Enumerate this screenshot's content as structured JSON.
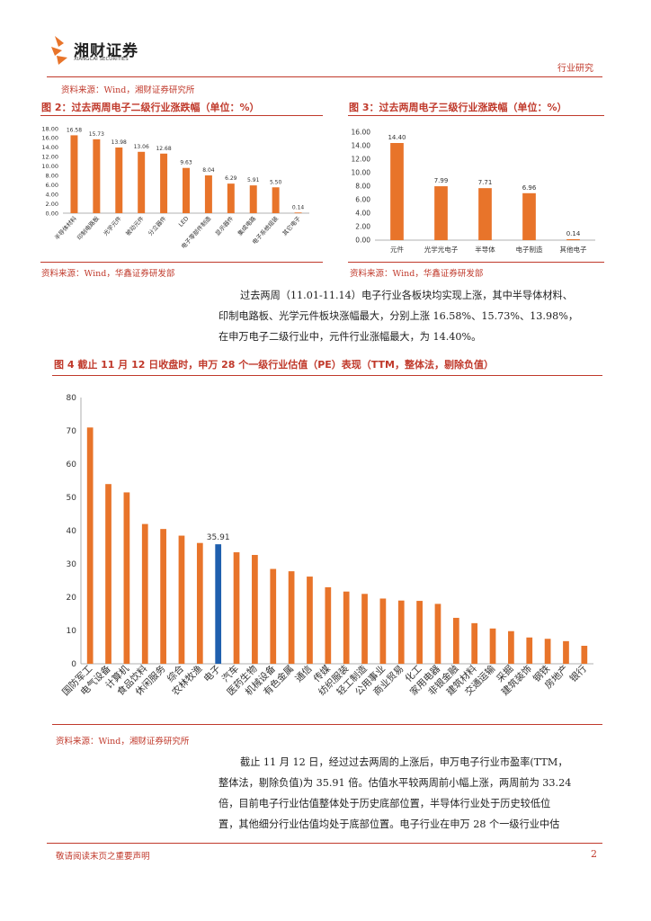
{
  "header": {
    "logo_cn": "湘财证券",
    "logo_en": "XIANGCAI SECURITIES",
    "section": "行业研究"
  },
  "source_top": "资料来源：Wind，湘财证券研究所",
  "fig2": {
    "title": "图 2：过去两周电子二级行业涨跌幅（单位：%）",
    "source": "资料来源：Wind，华鑫证券研发部"
  },
  "fig3": {
    "title": "图 3：过去两周电子三级行业涨跌幅（单位：%）",
    "source": "资料来源：Wind，华鑫证券研发部"
  },
  "para1": [
    "过去两周（11.01-11.14）电子行业各板块均实现上涨，其中半导体材料、",
    "印制电路板、光学元件板块涨幅最大，分别上涨 16.58%、15.73%、13.98%，",
    "在申万电子二级行业中，元件行业涨幅最大，为 14.40%。"
  ],
  "fig4": {
    "title": "图 4  截止 11 月 12 日收盘时，申万 28 个一级行业估值（PE）表现（TTM，整体法，剔除负值）",
    "source": "资料来源：Wind，湘财证券研究所"
  },
  "para2": [
    "截止 11 月 12 日，经过过去两周的上涨后，申万电子行业市盈率(TTM，",
    "整体法，剔除负值)为 35.91 倍。估值水平较两周前小幅上涨，两周前为 33.24",
    "倍，目前电子行业估值整体处于历史底部位置，半导体行业处于历史较低位",
    "置，其他细分行业估值均处于底部位置。电子行业在申万 28 个一级行业中估"
  ],
  "footer": {
    "disclaimer": "敬请阅读末页之重要声明",
    "page": "2"
  },
  "colors": {
    "accent": "#c0392b",
    "bar": "#e8742a",
    "highlight": "#1f5fae"
  },
  "chart_data": [
    {
      "type": "bar",
      "categories": [
        "半导体材料",
        "印制电路板",
        "光学元件",
        "被动元件",
        "分立器件",
        "LED",
        "电子零部件制造",
        "显示器件",
        "集成电路",
        "电子系统组装",
        "其它电子"
      ],
      "values": [
        16.58,
        15.73,
        13.98,
        13.06,
        12.68,
        9.63,
        8.04,
        6.29,
        5.91,
        5.5,
        0.14
      ],
      "yticks": [
        "18.00",
        "16.00",
        "14.00",
        "12.00",
        "10.00",
        "8.00",
        "6.00",
        "4.00",
        "2.00",
        "0.00"
      ],
      "ylim": [
        0,
        18
      ]
    },
    {
      "type": "bar",
      "categories": [
        "元件",
        "光学光电子",
        "半导体",
        "电子制造",
        "其他电子"
      ],
      "values": [
        14.4,
        7.99,
        7.71,
        6.96,
        0.14
      ],
      "yticks": [
        "16.00",
        "14.00",
        "12.00",
        "10.00",
        "8.00",
        "6.00",
        "4.00",
        "2.00",
        "0.00"
      ],
      "ylim": [
        0,
        16
      ]
    },
    {
      "type": "bar",
      "categories": [
        "国防军工",
        "电气设备",
        "计算机",
        "食品饮料",
        "休闲服务",
        "综合",
        "农林牧渔",
        "电子",
        "汽车",
        "医药生物",
        "机械设备",
        "有色金属",
        "通信",
        "传媒",
        "纺织服装",
        "轻工制造",
        "公用事业",
        "商业贸易",
        "化工",
        "家用电器",
        "非银金融",
        "建筑材料",
        "交通运输",
        "采掘",
        "建筑装饰",
        "钢铁",
        "房地产",
        "银行"
      ],
      "values": [
        71,
        54,
        51.5,
        42,
        40.5,
        38.5,
        36.3,
        35.91,
        33.5,
        32.7,
        28.5,
        27.8,
        26.2,
        23,
        21.7,
        21,
        19.6,
        19,
        18.9,
        18,
        13.8,
        12.2,
        10.6,
        9.8,
        7.9,
        7.5,
        6.8,
        5.4
      ],
      "highlight_label": "35.91",
      "yticks": [
        "80",
        "70",
        "60",
        "50",
        "40",
        "30",
        "20",
        "10",
        "0"
      ],
      "ylim": [
        0,
        80
      ]
    }
  ]
}
